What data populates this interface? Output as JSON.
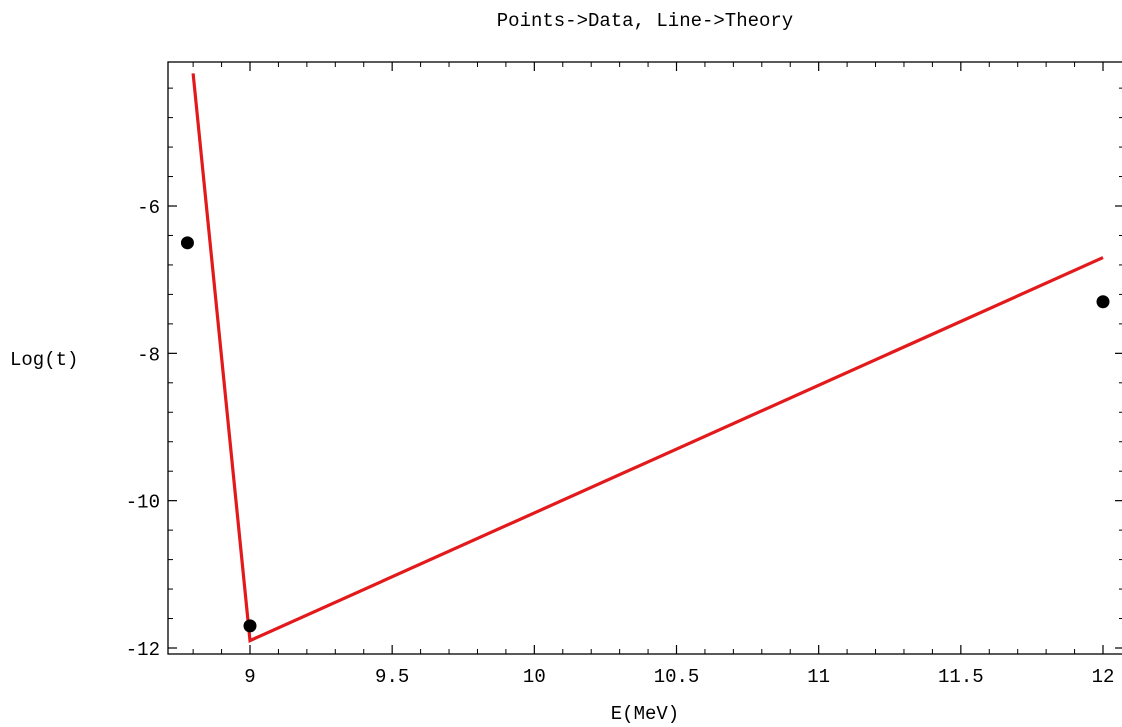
{
  "chart_data": {
    "type": "line",
    "title": "Points->Data,  Line->Theory",
    "xlabel": "E(MeV)",
    "ylabel": "Log(t)",
    "xlim": [
      8.78,
      12.03
    ],
    "ylim": [
      -12.1,
      -3.6
    ],
    "x_ticks": [
      9,
      9.5,
      10,
      10.5,
      11,
      11.5,
      12
    ],
    "x_tick_labels": [
      "9",
      "9.5",
      "10",
      "10.5",
      "11",
      "11.5",
      "12"
    ],
    "y_ticks": [
      -6,
      -8,
      -10,
      -12
    ],
    "y_tick_labels": [
      "-6",
      "-8",
      "-10",
      "-12"
    ],
    "grid": false,
    "series": [
      {
        "kind": "points",
        "color": "#000000",
        "x": [
          8.78,
          9.0,
          12.0
        ],
        "y": [
          -6.5,
          -11.7,
          -7.3
        ]
      },
      {
        "kind": "line",
        "color": "#e31a1c",
        "x": [
          8.8,
          9.0,
          12.0
        ],
        "y": [
          -4.2,
          -11.9,
          -6.7
        ]
      }
    ]
  }
}
